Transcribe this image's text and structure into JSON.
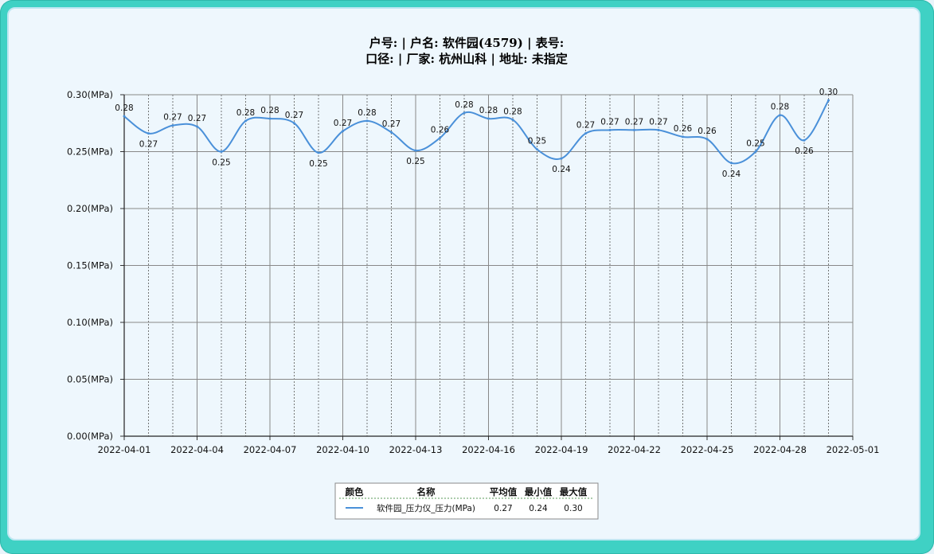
{
  "title_lines": [
    "户号: | 户名: 软件园(4579) | 表号:",
    "口径: | 厂家: 杭州山科 | 地址: 未指定"
  ],
  "colors": {
    "series": "#4a90d9",
    "frame": "#3fd1c4",
    "plot_bg": "#eef7fd"
  },
  "chart_data": {
    "type": "line",
    "title": "户号: | 户名: 软件园(4579) | 表号: / 口径: | 厂家: 杭州山科 | 地址: 未指定",
    "xlabel": "",
    "ylabel": "",
    "x_ticks": [
      "2022-04-01",
      "2022-04-04",
      "2022-04-07",
      "2022-04-10",
      "2022-04-13",
      "2022-04-16",
      "2022-04-19",
      "2022-04-22",
      "2022-04-25",
      "2022-04-28",
      "2022-05-01"
    ],
    "y_ticks": [
      "0.00(MPa)",
      "0.05(MPa)",
      "0.10(MPa)",
      "0.15(MPa)",
      "0.20(MPa)",
      "0.25(MPa)",
      "0.30(MPa)"
    ],
    "xlim": [
      "2022-04-01",
      "2022-05-01"
    ],
    "ylim": [
      0,
      0.3
    ],
    "grid": true,
    "series": [
      {
        "name": "软件园_压力仪_压力(MPa)",
        "x": [
          "2022-04-01",
          "2022-04-02",
          "2022-04-03",
          "2022-04-04",
          "2022-04-05",
          "2022-04-06",
          "2022-04-07",
          "2022-04-08",
          "2022-04-09",
          "2022-04-10",
          "2022-04-11",
          "2022-04-12",
          "2022-04-13",
          "2022-04-14",
          "2022-04-15",
          "2022-04-16",
          "2022-04-17",
          "2022-04-18",
          "2022-04-19",
          "2022-04-20",
          "2022-04-21",
          "2022-04-22",
          "2022-04-23",
          "2022-04-24",
          "2022-04-25",
          "2022-04-26",
          "2022-04-27",
          "2022-04-28",
          "2022-04-29",
          "2022-04-30"
        ],
        "values": [
          0.281,
          0.266,
          0.273,
          0.272,
          0.25,
          0.277,
          0.279,
          0.275,
          0.249,
          0.268,
          0.277,
          0.267,
          0.251,
          0.262,
          0.284,
          0.279,
          0.278,
          0.252,
          0.244,
          0.266,
          0.269,
          0.269,
          0.269,
          0.263,
          0.261,
          0.24,
          0.25,
          0.282,
          0.26,
          0.295
        ],
        "labels": [
          "0.28",
          "0.27",
          "0.27",
          "0.27",
          "0.25",
          "0.28",
          "0.28",
          "0.27",
          "0.25",
          "0.27",
          "0.28",
          "0.27",
          "0.25",
          "0.26",
          "0.28",
          "0.28",
          "0.28",
          "0.25",
          "0.24",
          "0.27",
          "0.27",
          "0.27",
          "0.27",
          "0.26",
          "0.26",
          "0.24",
          "0.25",
          "0.28",
          "0.26",
          "0.30"
        ]
      }
    ]
  },
  "legend": {
    "headers": [
      "颜色",
      "名称",
      "平均值",
      "最小值",
      "最大值"
    ],
    "rows": [
      {
        "name": "软件园_压力仪_压力(MPa)",
        "avg": "0.27",
        "min": "0.24",
        "max": "0.30"
      }
    ]
  }
}
